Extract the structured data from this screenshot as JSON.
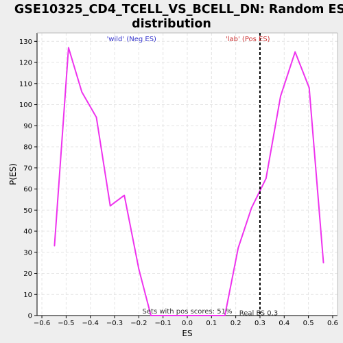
{
  "chart_data": {
    "type": "line",
    "title_lines": [
      "GSE10325_CD4_TCELL_VS_BCELL_DN: Random ES",
      "distribution"
    ],
    "xlabel": "ES",
    "ylabel": "P(ES)",
    "xlim": [
      -0.62,
      0.62
    ],
    "ylim": [
      0,
      134
    ],
    "xticks": [
      -0.6,
      -0.5,
      -0.4,
      -0.3,
      -0.2,
      -0.1,
      0.0,
      0.1,
      0.2,
      0.3,
      0.4,
      0.5,
      0.6
    ],
    "xtick_labels": [
      "−0.6",
      "−0.5",
      "−0.4",
      "−0.3",
      "−0.2",
      "−0.1",
      "0.0",
      "0.1",
      "0.2",
      "0.3",
      "0.4",
      "0.5",
      "0.6"
    ],
    "yticks": [
      0,
      10,
      20,
      30,
      40,
      50,
      60,
      70,
      80,
      90,
      100,
      110,
      120,
      130
    ],
    "ytick_labels": [
      "0",
      "10",
      "20",
      "30",
      "40",
      "50",
      "60",
      "70",
      "80",
      "90",
      "100",
      "110",
      "120",
      "130"
    ],
    "grid": true,
    "series": [
      {
        "color": "#ee33ee",
        "x": [
          -0.548,
          -0.49,
          -0.435,
          -0.375,
          -0.318,
          -0.26,
          -0.2,
          -0.15,
          -0.1,
          -0.05,
          0.0,
          0.05,
          0.1,
          0.155,
          0.21,
          0.265,
          0.325,
          0.385,
          0.445,
          0.503,
          0.562
        ],
        "y": [
          33,
          127,
          106,
          94,
          52,
          57,
          22,
          0,
          0,
          0,
          0,
          0,
          0,
          0,
          32,
          51,
          65,
          104,
          125,
          108,
          25
        ]
      }
    ],
    "real_es": {
      "value": 0.3,
      "label": "Real ES 0.3",
      "color": "#000000"
    },
    "annotations": {
      "neg": {
        "text": "'wild' (Neg ES)",
        "color": "#3333cc"
      },
      "pos": {
        "text": "'lab' (Pos ES)",
        "color": "#cc3333"
      },
      "sets": {
        "text": "Sets with pos scores: 51%",
        "color": "#333333"
      }
    }
  }
}
